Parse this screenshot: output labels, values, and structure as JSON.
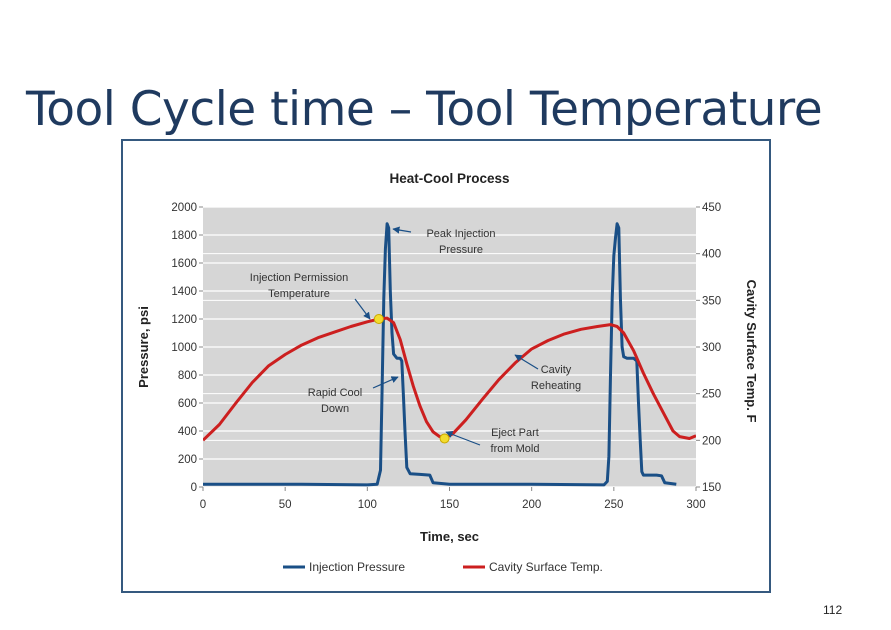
{
  "slide": {
    "title": "Tool Cycle time – Tool Temperature",
    "page_number": "112"
  },
  "colors": {
    "pressure": "#1a4f86",
    "temperature": "#cc1f1f",
    "plot_bg": "#d6d6d6",
    "grid": "#ffffff",
    "title_text": "#1f3a5f",
    "frame": "#35597f",
    "marker": "#f3dc2e"
  },
  "chart_data": {
    "type": "line",
    "title": "Heat-Cool Process",
    "xlabel": "Time, sec",
    "ylabel": "Pressure, psi",
    "y2label": "Cavity Surface Temp. F",
    "xlim": [
      0,
      300
    ],
    "ylim": [
      0,
      2000
    ],
    "y2lim": [
      150,
      450
    ],
    "x_ticks": [
      0,
      50,
      100,
      150,
      200,
      250,
      300
    ],
    "y_ticks": [
      0,
      200,
      400,
      600,
      800,
      1000,
      1200,
      1400,
      1600,
      1800,
      2000
    ],
    "y2_ticks": [
      150,
      200,
      250,
      300,
      350,
      400,
      450
    ],
    "grid": true,
    "legend_position": "bottom",
    "series": [
      {
        "name": "Injection Pressure",
        "axis": "left",
        "points": [
          [
            0,
            20
          ],
          [
            60,
            20
          ],
          [
            100,
            15
          ],
          [
            106,
            20
          ],
          [
            108,
            120
          ],
          [
            109,
            700
          ],
          [
            110,
            1350
          ],
          [
            111,
            1700
          ],
          [
            112,
            1880
          ],
          [
            113,
            1850
          ],
          [
            114,
            1400
          ],
          [
            115,
            1100
          ],
          [
            116,
            950
          ],
          [
            118,
            920
          ],
          [
            120,
            920
          ],
          [
            121,
            900
          ],
          [
            122,
            640
          ],
          [
            123,
            380
          ],
          [
            124,
            140
          ],
          [
            126,
            95
          ],
          [
            132,
            90
          ],
          [
            138,
            85
          ],
          [
            140,
            30
          ],
          [
            150,
            20
          ],
          [
            200,
            20
          ],
          [
            244,
            15
          ],
          [
            246,
            40
          ],
          [
            247,
            220
          ],
          [
            248,
            800
          ],
          [
            249,
            1350
          ],
          [
            250,
            1650
          ],
          [
            251,
            1780
          ],
          [
            252,
            1880
          ],
          [
            253,
            1850
          ],
          [
            254,
            1350
          ],
          [
            255,
            1000
          ],
          [
            256,
            930
          ],
          [
            258,
            920
          ],
          [
            262,
            920
          ],
          [
            264,
            900
          ],
          [
            265,
            600
          ],
          [
            266,
            350
          ],
          [
            267,
            110
          ],
          [
            268,
            85
          ],
          [
            276,
            85
          ],
          [
            279,
            80
          ],
          [
            281,
            30
          ],
          [
            288,
            20
          ]
        ]
      },
      {
        "name": "Cavity Surface Temp.",
        "axis": "right",
        "points": [
          [
            0,
            200
          ],
          [
            10,
            217
          ],
          [
            20,
            240
          ],
          [
            30,
            262
          ],
          [
            40,
            280
          ],
          [
            50,
            292
          ],
          [
            60,
            302
          ],
          [
            70,
            310
          ],
          [
            80,
            316
          ],
          [
            90,
            322
          ],
          [
            100,
            327
          ],
          [
            107,
            330
          ],
          [
            112,
            331
          ],
          [
            116,
            326
          ],
          [
            120,
            308
          ],
          [
            124,
            282
          ],
          [
            128,
            258
          ],
          [
            132,
            237
          ],
          [
            136,
            220
          ],
          [
            140,
            209
          ],
          [
            144,
            204
          ],
          [
            148,
            203
          ],
          [
            152,
            207
          ],
          [
            160,
            222
          ],
          [
            170,
            244
          ],
          [
            180,
            265
          ],
          [
            190,
            283
          ],
          [
            200,
            298
          ],
          [
            210,
            307
          ],
          [
            220,
            314
          ],
          [
            230,
            319
          ],
          [
            240,
            322
          ],
          [
            248,
            324
          ],
          [
            252,
            322
          ],
          [
            256,
            315
          ],
          [
            262,
            296
          ],
          [
            268,
            272
          ],
          [
            274,
            250
          ],
          [
            280,
            230
          ],
          [
            286,
            210
          ],
          [
            290,
            204
          ],
          [
            296,
            202
          ],
          [
            300,
            205
          ]
        ]
      }
    ],
    "markers": [
      {
        "x": 107,
        "y_temp": 330
      },
      {
        "x": 147,
        "y_temp": 202
      }
    ],
    "annotations": [
      {
        "id": "peak",
        "lines": [
          "Peak Injection",
          "Pressure"
        ]
      },
      {
        "id": "perm",
        "lines": [
          "Injection Permission",
          "Temperature"
        ]
      },
      {
        "id": "rapid",
        "lines": [
          "Rapid Cool",
          "Down"
        ]
      },
      {
        "id": "cavity",
        "lines": [
          "Cavity",
          "Reheating"
        ]
      },
      {
        "id": "eject",
        "lines": [
          "Eject Part",
          "from Mold"
        ]
      }
    ]
  }
}
